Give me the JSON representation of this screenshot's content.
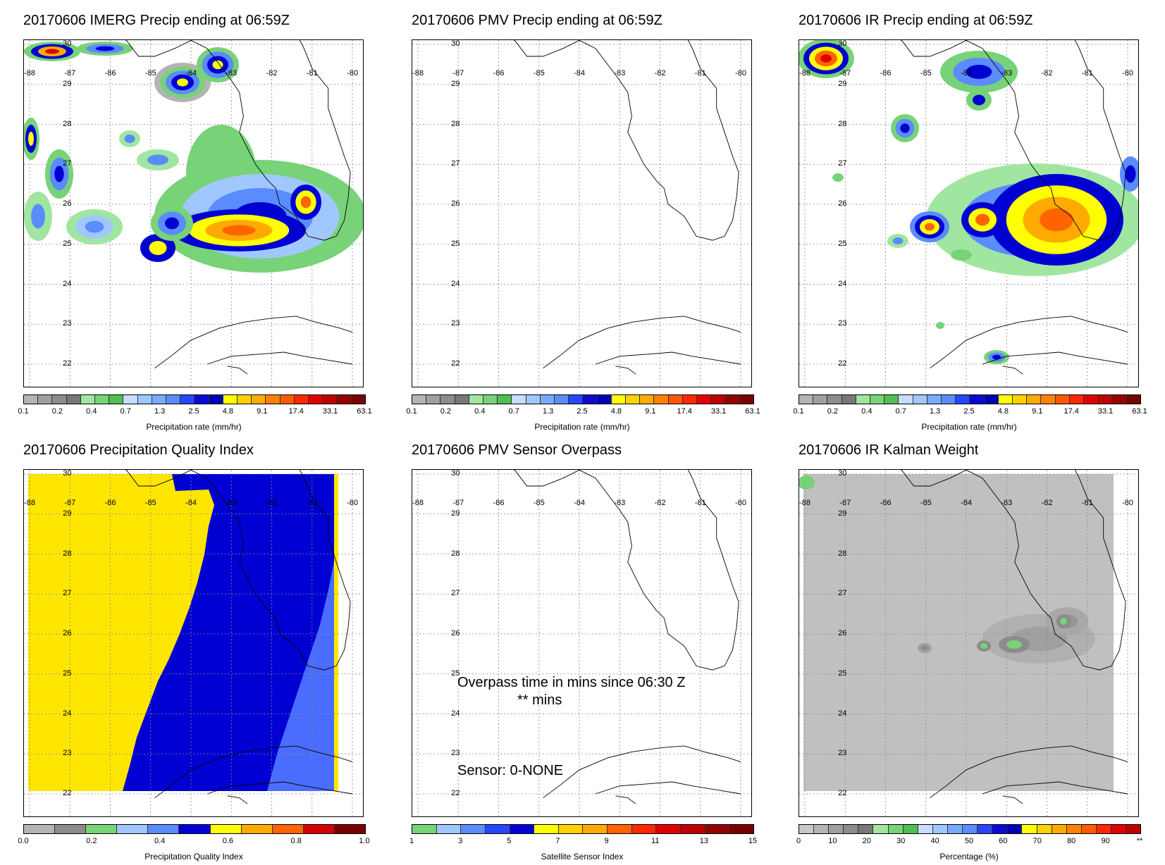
{
  "panels": [
    {
      "id": "imerg",
      "title": "20170606 IMERG Precip ending at 06:59Z",
      "colorbar": {
        "title": "Precipitation rate (mm/hr)",
        "ticks": [
          "0.1",
          "0.2",
          "0.4",
          "0.7",
          "1.3",
          "2.5",
          "4.8",
          "9.1",
          "17.4",
          "33.1",
          "63.1"
        ],
        "colors": [
          "#b4b4b4",
          "#a0a0a0",
          "#8c8c8c",
          "#787878",
          "#a0e6a0",
          "#78d278",
          "#50be50",
          "#c8dcff",
          "#a0c8ff",
          "#78aaff",
          "#5a8cff",
          "#2846ff",
          "#0a0ad2",
          "#0000b4",
          "#ffff00",
          "#ffd200",
          "#ffaa00",
          "#ff8200",
          "#ff5a00",
          "#ff2800",
          "#e10000",
          "#be0000",
          "#960000",
          "#780000"
        ]
      }
    },
    {
      "id": "pmv",
      "title": "20170606 PMV Precip ending at 06:59Z",
      "colorbar": {
        "title": "Precipitation rate (mm/hr)",
        "ticks": [
          "0.1",
          "0.2",
          "0.4",
          "0.7",
          "1.3",
          "2.5",
          "4.8",
          "9.1",
          "17.4",
          "33.1",
          "63.1"
        ],
        "colors": [
          "#b4b4b4",
          "#a0a0a0",
          "#8c8c8c",
          "#787878",
          "#a0e6a0",
          "#78d278",
          "#50be50",
          "#c8dcff",
          "#a0c8ff",
          "#78aaff",
          "#5a8cff",
          "#2846ff",
          "#0a0ad2",
          "#0000b4",
          "#ffff00",
          "#ffd200",
          "#ffaa00",
          "#ff8200",
          "#ff5a00",
          "#ff2800",
          "#e10000",
          "#be0000",
          "#960000",
          "#780000"
        ]
      }
    },
    {
      "id": "ir",
      "title": "20170606 IR Precip ending at 06:59Z",
      "colorbar": {
        "title": "Precipitation rate (mm/hr)",
        "ticks": [
          "0.1",
          "0.2",
          "0.4",
          "0.7",
          "1.3",
          "2.5",
          "4.8",
          "9.1",
          "17.4",
          "33.1",
          "63.1"
        ],
        "colors": [
          "#b4b4b4",
          "#a0a0a0",
          "#8c8c8c",
          "#787878",
          "#a0e6a0",
          "#78d278",
          "#50be50",
          "#c8dcff",
          "#a0c8ff",
          "#78aaff",
          "#5a8cff",
          "#2846ff",
          "#0a0ad2",
          "#0000b4",
          "#ffff00",
          "#ffd200",
          "#ffaa00",
          "#ff8200",
          "#ff5a00",
          "#ff2800",
          "#e10000",
          "#be0000",
          "#960000",
          "#780000"
        ]
      }
    },
    {
      "id": "pqi",
      "title": "20170606 Precipitation Quality Index",
      "colorbar": {
        "title": "Precipitation Quality Index",
        "ticks": [
          "0.0",
          "0.2",
          "0.4",
          "0.6",
          "0.8",
          "1.0"
        ],
        "colors": [
          "#b4b4b4",
          "#8c8c8c",
          "#78d278",
          "#a0c8ff",
          "#5a8cff",
          "#0000d2",
          "#ffff00",
          "#ffaa00",
          "#ff6400",
          "#d20000",
          "#780000"
        ]
      }
    },
    {
      "id": "overpass",
      "title": "20170606 PMV Sensor Overpass",
      "overlay": {
        "overpass_line": "Overpass time in mins since 06:30 Z",
        "overpass_value": "** mins",
        "sensor_line": "Sensor:   0-NONE"
      },
      "colorbar": {
        "title": "Satellite Sensor Index",
        "ticks": [
          "1",
          "3",
          "5",
          "7",
          "9",
          "11",
          "13",
          "15"
        ],
        "colors": [
          "#78d278",
          "#a0c8ff",
          "#5a8cff",
          "#2846ff",
          "#0000d2",
          "#ffff00",
          "#ffd200",
          "#ffaa00",
          "#ff6400",
          "#ff2800",
          "#e10000",
          "#be0000",
          "#960000",
          "#780000"
        ]
      }
    },
    {
      "id": "kalman",
      "title": "20170606 IR Kalman Weight",
      "colorbar": {
        "title": "Percentage (%)",
        "ticks": [
          "0",
          "10",
          "20",
          "30",
          "40",
          "50",
          "60",
          "70",
          "80",
          "90",
          "**"
        ],
        "colors": [
          "#c8c8c8",
          "#b4b4b4",
          "#a0a0a0",
          "#8c8c8c",
          "#787878",
          "#a0e6a0",
          "#78d278",
          "#50be50",
          "#c8dcff",
          "#a0c8ff",
          "#78aaff",
          "#5a8cff",
          "#2846ff",
          "#0a0ad2",
          "#0000b4",
          "#ffff00",
          "#ffd200",
          "#ffaa00",
          "#ff8200",
          "#ff5a00",
          "#ff2800",
          "#e10000",
          "#be0000"
        ]
      }
    }
  ],
  "lon_labels": [
    "-88",
    "-87",
    "-86",
    "-85",
    "-84",
    "-83",
    "-82",
    "-81",
    "-80"
  ],
  "lat_labels": [
    "30",
    "29",
    "28",
    "27",
    "26",
    "25",
    "24",
    "23",
    "22"
  ]
}
